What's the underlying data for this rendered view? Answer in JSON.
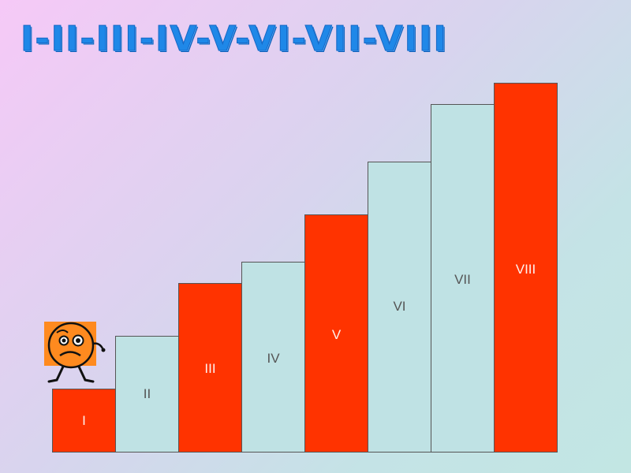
{
  "title": "I-II-III-IV-V-VI-VII-VIII",
  "colors": {
    "red": "#ff3300",
    "light_blue": "#bfe2e4",
    "title_blue": "#1f88e8",
    "character_orange": "#ff8a1f"
  },
  "steps": [
    {
      "label": "I",
      "color": "red"
    },
    {
      "label": "II",
      "color": "light_blue"
    },
    {
      "label": "III",
      "color": "red"
    },
    {
      "label": "IV",
      "color": "light_blue"
    },
    {
      "label": "V",
      "color": "red"
    },
    {
      "label": "VI",
      "color": "light_blue"
    },
    {
      "label": "VII",
      "color": "light_blue"
    },
    {
      "label": "VIII",
      "color": "red"
    }
  ],
  "character": {
    "icon": "worried-orange-face-walker-icon"
  }
}
